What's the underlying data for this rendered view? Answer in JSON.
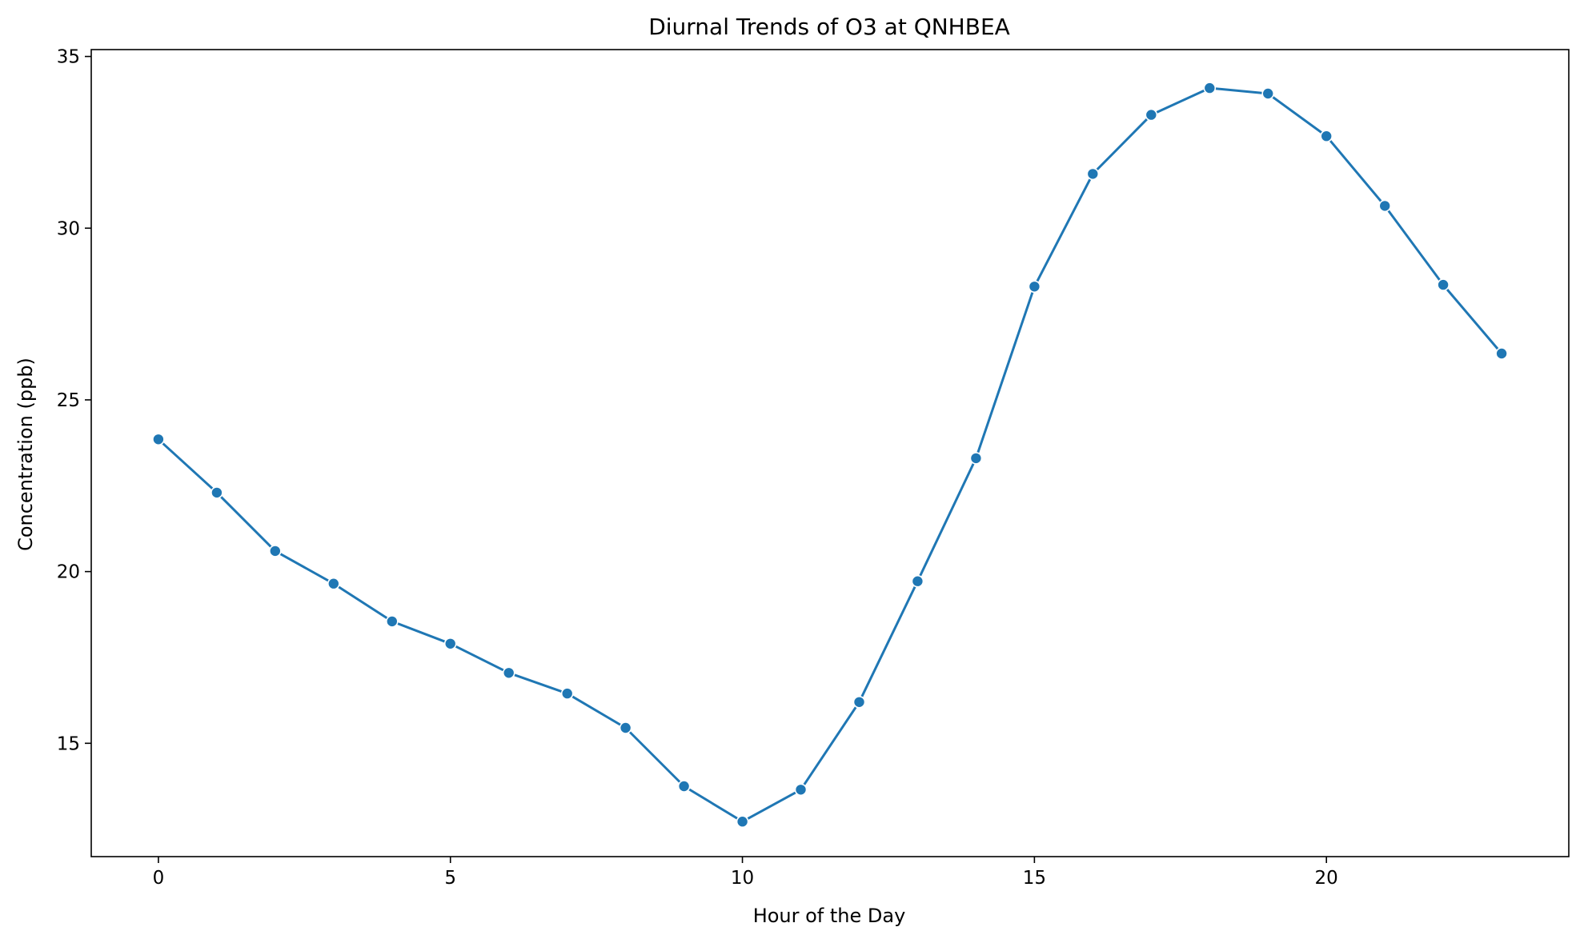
{
  "chart_data": {
    "type": "line",
    "title": "Diurnal Trends of O3 at QNHBEA",
    "xlabel": "Hour of the Day",
    "ylabel": "Concentration (ppb)",
    "x": [
      0,
      1,
      2,
      3,
      4,
      5,
      6,
      7,
      8,
      9,
      10,
      11,
      12,
      13,
      14,
      15,
      16,
      17,
      18,
      19,
      20,
      21,
      22,
      23
    ],
    "series": [
      {
        "values": [
          23.85,
          22.3,
          20.6,
          19.65,
          18.55,
          17.9,
          17.05,
          16.45,
          15.45,
          13.75,
          12.72,
          13.65,
          16.2,
          19.72,
          23.3,
          28.3,
          31.58,
          33.3,
          34.08,
          33.92,
          32.68,
          30.65,
          28.35,
          26.35
        ],
        "color": "#1f77b4",
        "marker": "circle"
      }
    ],
    "xlim": [
      -1.15,
      24.15
    ],
    "ylim": [
      11.7,
      35.2
    ],
    "xticks": [
      "0",
      "5",
      "10",
      "15",
      "20"
    ],
    "xtick_values": [
      0,
      5,
      10,
      15,
      20
    ],
    "yticks": [
      "15",
      "20",
      "25",
      "30",
      "35"
    ],
    "ytick_values": [
      15,
      20,
      25,
      30,
      35
    ],
    "grid": false,
    "legend": "none"
  }
}
